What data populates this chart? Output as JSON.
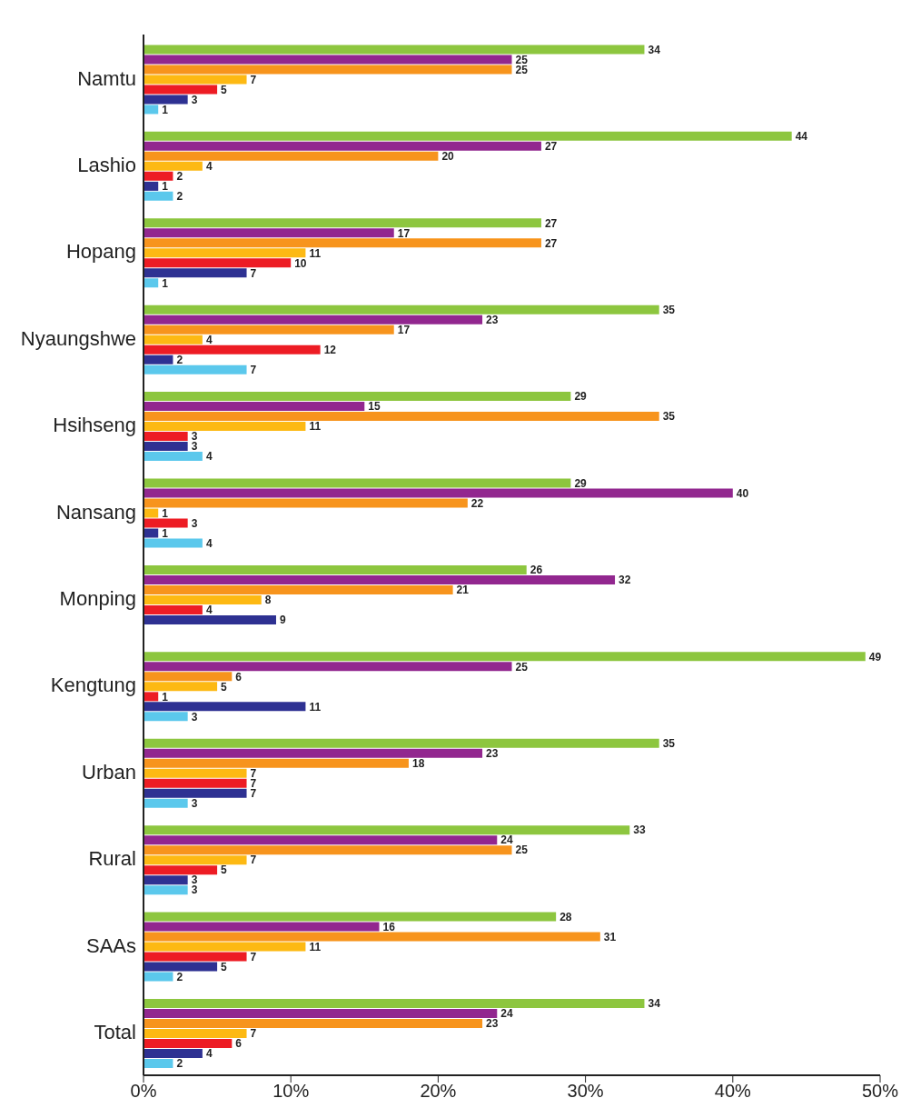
{
  "chart_data": {
    "type": "bar",
    "orientation": "horizontal",
    "categories": [
      "Namtu",
      "Lashio",
      "Hopang",
      "Nyaungshwe",
      "Hsihseng",
      "Nansang",
      "Monping",
      "Kengtung",
      "Urban",
      "Rural",
      "SAAs",
      "Total"
    ],
    "series": [
      {
        "color": "#8dc63f",
        "values": [
          34,
          44,
          27,
          35,
          29,
          29,
          26,
          49,
          35,
          33,
          28,
          34
        ]
      },
      {
        "color": "#92278f",
        "values": [
          25,
          27,
          17,
          23,
          15,
          40,
          32,
          25,
          23,
          24,
          16,
          24
        ]
      },
      {
        "color": "#f7941d",
        "values": [
          25,
          20,
          27,
          17,
          35,
          22,
          21,
          6,
          18,
          25,
          31,
          23
        ]
      },
      {
        "color": "#fdb913",
        "values": [
          7,
          4,
          11,
          4,
          11,
          1,
          8,
          5,
          7,
          7,
          11,
          7
        ]
      },
      {
        "color": "#ed1c24",
        "values": [
          5,
          2,
          10,
          12,
          3,
          3,
          4,
          1,
          7,
          5,
          7,
          6
        ]
      },
      {
        "color": "#2e3192",
        "values": [
          3,
          1,
          7,
          2,
          3,
          1,
          9,
          11,
          7,
          3,
          5,
          4
        ]
      },
      {
        "color": "#5bc8ec",
        "values": [
          1,
          2,
          1,
          7,
          4,
          4,
          null,
          3,
          3,
          3,
          2,
          2
        ]
      }
    ],
    "xlim": [
      0,
      50
    ],
    "xticks": [
      {
        "value": 0,
        "label": "0%"
      },
      {
        "value": 10,
        "label": "10%"
      },
      {
        "value": 20,
        "label": "20%"
      },
      {
        "value": 30,
        "label": "30%"
      },
      {
        "value": 40,
        "label": "40%"
      },
      {
        "value": 50,
        "label": "50%"
      }
    ],
    "data_labels": true
  }
}
